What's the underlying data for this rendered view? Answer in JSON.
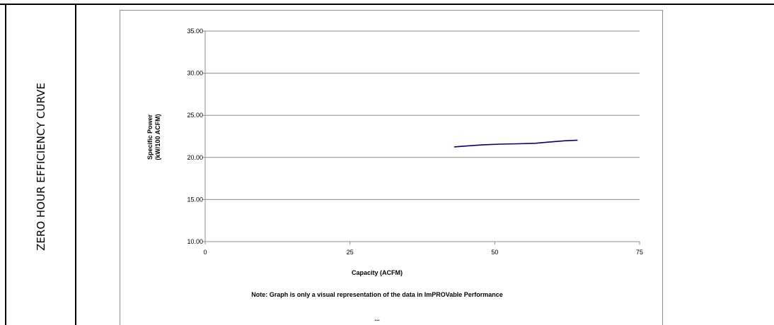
{
  "side_label": "ZERO HOUR EFFICIENCY CURVE",
  "chart_data": {
    "type": "line",
    "title": "",
    "xlabel": "Capacity (ACFM)",
    "ylabel_lines": [
      "Specific Power",
      "(kW/100 ACFM)"
    ],
    "xlim": [
      0,
      75
    ],
    "ylim": [
      10,
      35
    ],
    "x_ticks": [
      "0",
      "25",
      "50",
      "75"
    ],
    "y_ticks": [
      "35.00",
      "30.00",
      "25.00",
      "20.00",
      "15.00",
      "10.00"
    ],
    "grid": "horizontal",
    "legend": "none",
    "series": [
      {
        "color": "#000080",
        "x": [
          43,
          45,
          48,
          51,
          54,
          57,
          59,
          62,
          64.3
        ],
        "y": [
          21.25,
          21.35,
          21.5,
          21.58,
          21.62,
          21.68,
          21.8,
          21.97,
          22.05
        ]
      }
    ],
    "note": "Note:  Graph is only a visual representation of the data in ImPROVable Performance",
    "ellipsis": "..."
  }
}
